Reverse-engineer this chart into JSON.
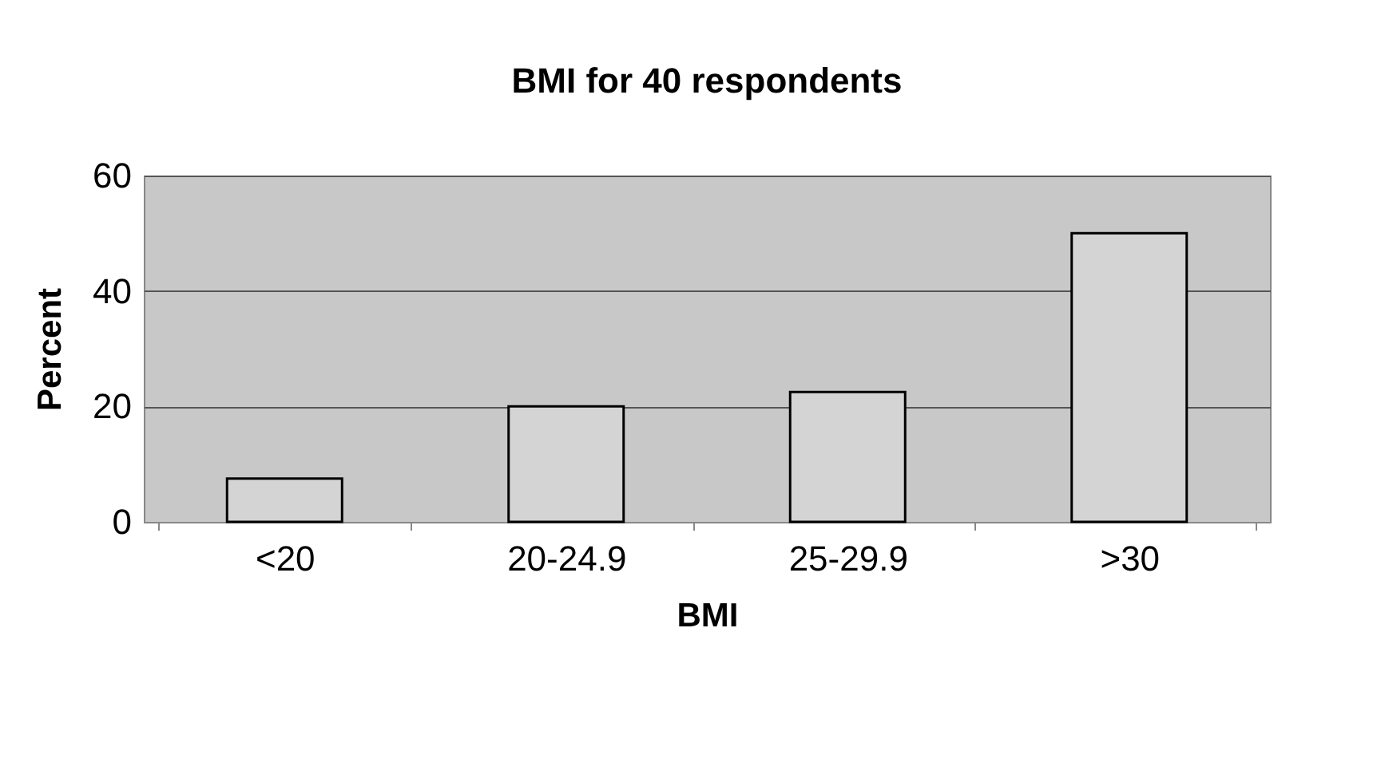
{
  "chart_data": {
    "type": "bar",
    "title": "BMI for 40 respondents",
    "xlabel": "BMI",
    "ylabel": "Percent",
    "categories": [
      "<20",
      "20-24.9",
      "25-29.9",
      ">30"
    ],
    "values": [
      7.5,
      20,
      22.5,
      50
    ],
    "color": "#d4d4d4",
    "ylim": [
      0,
      60
    ],
    "yticks": [
      0,
      20,
      40,
      60
    ],
    "grid": "y"
  }
}
